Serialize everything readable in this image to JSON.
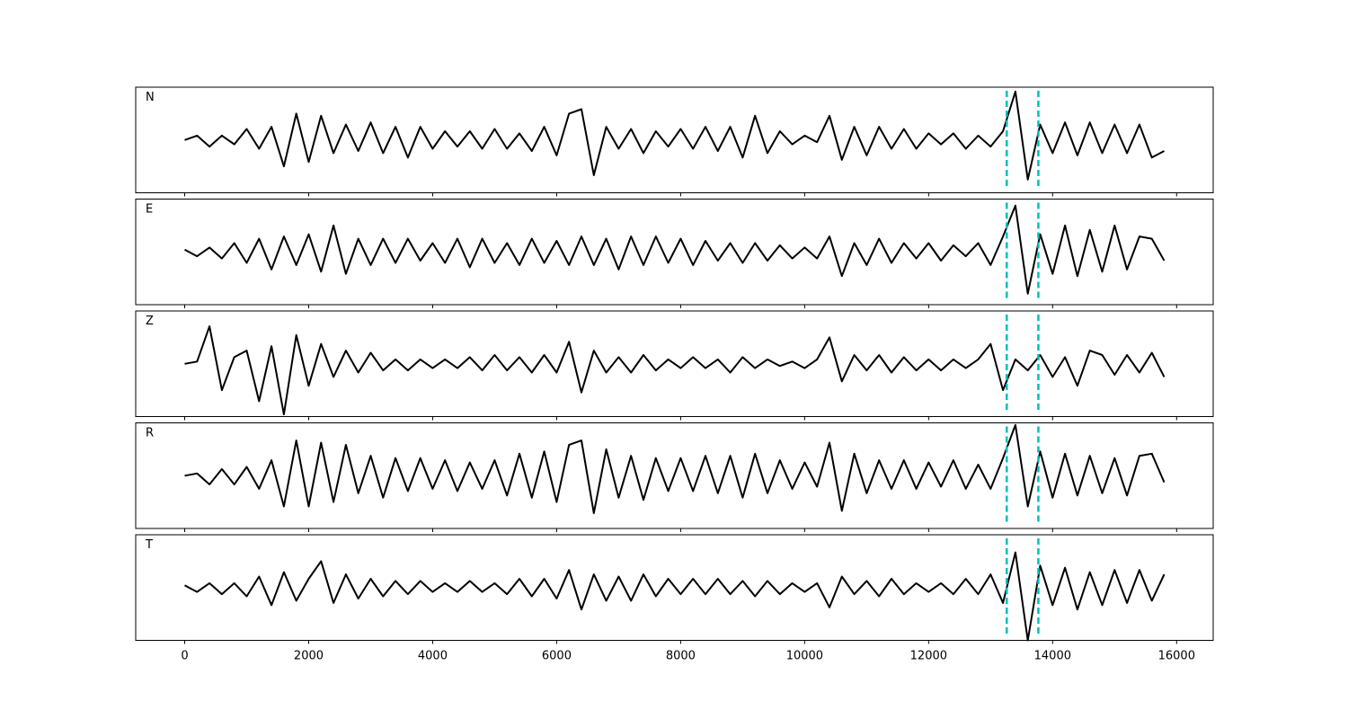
{
  "chart_data": {
    "type": "line",
    "subplots": true,
    "x": [
      0,
      200,
      400,
      600,
      800,
      1000,
      1200,
      1400,
      1600,
      1800,
      2000,
      2200,
      2400,
      2600,
      2800,
      3000,
      3200,
      3400,
      3600,
      3800,
      4000,
      4200,
      4400,
      4600,
      4800,
      5000,
      5200,
      5400,
      5600,
      5800,
      6000,
      6200,
      6400,
      6600,
      6800,
      7000,
      7200,
      7400,
      7600,
      7800,
      8000,
      8200,
      8400,
      8600,
      8800,
      9000,
      9200,
      9400,
      9600,
      9800,
      10000,
      10200,
      10400,
      10600,
      10800,
      11000,
      11200,
      11400,
      11600,
      11800,
      12000,
      12200,
      12400,
      12600,
      12800,
      13000,
      13200,
      13400,
      13600,
      13800,
      14000,
      14200,
      14400,
      14600,
      14800,
      15000,
      15200,
      15400,
      15600,
      15800
    ],
    "xlim": [
      -790,
      16590
    ],
    "xticks": [
      0,
      2000,
      4000,
      6000,
      8000,
      10000,
      12000,
      14000,
      16000
    ],
    "ylim": [
      -1.2,
      1.2
    ],
    "vlines": [
      13260,
      13770
    ],
    "vline_color": "#00bfbf",
    "vline_style": "dashed",
    "series": [
      {
        "name": "N",
        "color": "#000000",
        "values": [
          0,
          0.1,
          -0.15,
          0.1,
          -0.1,
          0.25,
          -0.2,
          0.3,
          -0.6,
          0.6,
          -0.5,
          0.55,
          -0.3,
          0.35,
          -0.25,
          0.4,
          -0.3,
          0.3,
          -0.4,
          0.3,
          -0.2,
          0.2,
          -0.15,
          0.2,
          -0.2,
          0.25,
          -0.2,
          0.15,
          -0.25,
          0.3,
          -0.35,
          0.6,
          0.7,
          -0.8,
          0.3,
          -0.2,
          0.25,
          -0.3,
          0.2,
          -0.15,
          0.25,
          -0.2,
          0.3,
          -0.25,
          0.3,
          -0.4,
          0.55,
          -0.3,
          0.2,
          -0.1,
          0.1,
          -0.05,
          0.55,
          -0.45,
          0.3,
          -0.35,
          0.3,
          -0.2,
          0.25,
          -0.2,
          0.15,
          -0.1,
          0.15,
          -0.2,
          0.1,
          -0.15,
          0.2,
          1.1,
          -0.9,
          0.35,
          -0.3,
          0.4,
          -0.35,
          0.4,
          -0.3,
          0.35,
          -0.3,
          0.35,
          -0.4,
          -0.25
        ]
      },
      {
        "name": "E",
        "color": "#000000",
        "values": [
          0.05,
          -0.1,
          0.1,
          -0.15,
          0.2,
          -0.25,
          0.3,
          -0.4,
          0.35,
          -0.3,
          0.4,
          -0.45,
          0.6,
          -0.5,
          0.3,
          -0.3,
          0.3,
          -0.25,
          0.3,
          -0.2,
          0.2,
          -0.25,
          0.3,
          -0.35,
          0.3,
          -0.25,
          0.2,
          -0.3,
          0.3,
          -0.25,
          0.25,
          -0.3,
          0.35,
          -0.3,
          0.3,
          -0.4,
          0.35,
          -0.3,
          0.35,
          -0.25,
          0.3,
          -0.3,
          0.25,
          -0.2,
          0.2,
          -0.25,
          0.2,
          -0.2,
          0.15,
          -0.15,
          0.1,
          -0.15,
          0.35,
          -0.55,
          0.2,
          -0.3,
          0.3,
          -0.25,
          0.2,
          -0.15,
          0.2,
          -0.2,
          0.15,
          -0.1,
          0.2,
          -0.3,
          0.35,
          1.05,
          -0.95,
          0.4,
          -0.5,
          0.6,
          -0.55,
          0.5,
          -0.45,
          0.6,
          -0.4,
          0.35,
          0.3,
          -0.2
        ]
      },
      {
        "name": "Z",
        "color": "#000000",
        "values": [
          0,
          0.05,
          0.85,
          -0.6,
          0.15,
          0.3,
          -0.85,
          0.4,
          -1.15,
          0.65,
          -0.5,
          0.45,
          -0.3,
          0.3,
          -0.2,
          0.25,
          -0.15,
          0.1,
          -0.15,
          0.1,
          -0.1,
          0.1,
          -0.1,
          0.15,
          -0.15,
          0.2,
          -0.15,
          0.15,
          -0.2,
          0.2,
          -0.2,
          0.5,
          -0.65,
          0.3,
          -0.2,
          0.15,
          -0.2,
          0.2,
          -0.15,
          0.1,
          -0.1,
          0.15,
          -0.1,
          0.1,
          -0.2,
          0.15,
          -0.1,
          0.1,
          -0.05,
          0.05,
          -0.1,
          0.1,
          0.6,
          -0.4,
          0.2,
          -0.15,
          0.2,
          -0.2,
          0.15,
          -0.15,
          0.1,
          -0.15,
          0.1,
          -0.1,
          0.1,
          0.45,
          -0.6,
          0.1,
          -0.15,
          0.2,
          -0.3,
          0.15,
          -0.5,
          0.3,
          0.2,
          -0.25,
          0.2,
          -0.2,
          0.25,
          -0.3
        ]
      },
      {
        "name": "R",
        "color": "#000000",
        "values": [
          0,
          0.05,
          -0.2,
          0.15,
          -0.2,
          0.2,
          -0.3,
          0.35,
          -0.7,
          0.8,
          -0.7,
          0.75,
          -0.6,
          0.7,
          -0.4,
          0.45,
          -0.5,
          0.4,
          -0.35,
          0.4,
          -0.3,
          0.35,
          -0.35,
          0.3,
          -0.3,
          0.35,
          -0.45,
          0.5,
          -0.5,
          0.55,
          -0.6,
          0.7,
          0.8,
          -0.85,
          0.6,
          -0.5,
          0.45,
          -0.55,
          0.4,
          -0.35,
          0.4,
          -0.35,
          0.45,
          -0.4,
          0.45,
          -0.5,
          0.5,
          -0.4,
          0.35,
          -0.3,
          0.3,
          -0.25,
          0.75,
          -0.8,
          0.5,
          -0.4,
          0.35,
          -0.3,
          0.35,
          -0.3,
          0.3,
          -0.25,
          0.35,
          -0.3,
          0.25,
          -0.3,
          0.4,
          1.15,
          -0.7,
          0.55,
          -0.5,
          0.5,
          -0.45,
          0.45,
          -0.4,
          0.4,
          -0.45,
          0.45,
          0.5,
          -0.15
        ]
      },
      {
        "name": "T",
        "color": "#000000",
        "values": [
          0.05,
          -0.1,
          0.1,
          -0.15,
          0.1,
          -0.2,
          0.25,
          -0.4,
          0.35,
          -0.3,
          0.2,
          0.6,
          -0.35,
          0.3,
          -0.25,
          0.2,
          -0.2,
          0.15,
          -0.15,
          0.15,
          -0.1,
          0.1,
          -0.1,
          0.15,
          -0.1,
          0.1,
          -0.15,
          0.2,
          -0.2,
          0.2,
          -0.25,
          0.4,
          -0.5,
          0.3,
          -0.3,
          0.25,
          -0.3,
          0.3,
          -0.2,
          0.2,
          -0.15,
          0.2,
          -0.15,
          0.2,
          -0.15,
          0.15,
          -0.2,
          0.15,
          -0.15,
          0.1,
          -0.1,
          0.1,
          -0.45,
          0.25,
          -0.15,
          0.15,
          -0.2,
          0.2,
          -0.15,
          0.1,
          -0.1,
          0.1,
          -0.15,
          0.2,
          -0.15,
          0.3,
          -0.35,
          0.8,
          -1.2,
          0.5,
          -0.4,
          0.45,
          -0.5,
          0.35,
          -0.4,
          0.4,
          -0.35,
          0.4,
          -0.3,
          0.3
        ]
      }
    ]
  }
}
